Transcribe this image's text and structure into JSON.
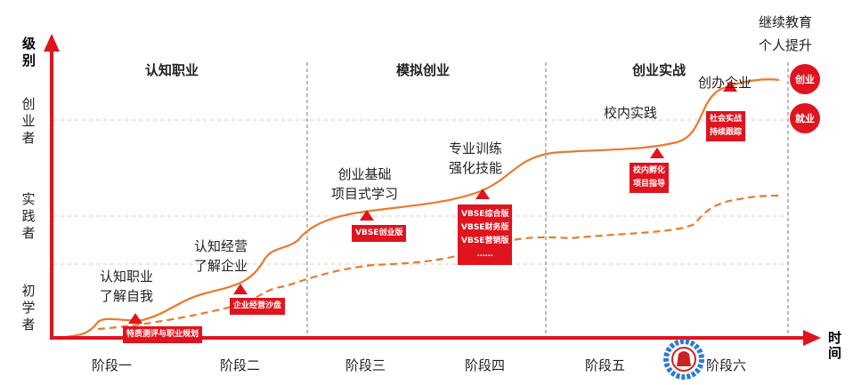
{
  "y_axis": {
    "title": [
      "级",
      "别"
    ],
    "levels": [
      [
        "创",
        "业",
        "者"
      ],
      [
        "实",
        "践",
        "者"
      ],
      [
        "初",
        "学",
        "者"
      ]
    ]
  },
  "x_axis": {
    "title": [
      "时",
      "间"
    ],
    "phases": [
      "阶段一",
      "阶段二",
      "阶段三",
      "阶段四",
      "阶段五",
      "阶段六"
    ]
  },
  "stages": [
    "认知职业",
    "模拟创业",
    "创业实战"
  ],
  "top_right": [
    "继续教育",
    "个人提升"
  ],
  "circles": [
    "创业",
    "就业"
  ],
  "notes": [
    [
      "认知职业",
      "了解自我"
    ],
    [
      "认知经营",
      "了解企业"
    ],
    [
      "创业基础",
      "项目式学习"
    ],
    [
      "专业训练",
      "强化技能"
    ],
    [
      "校内实践"
    ],
    [
      "创办企业"
    ]
  ],
  "boxes": [
    [
      "特质测评与职业规划"
    ],
    [
      "企业经营沙盘"
    ],
    [
      "VBSE创业版"
    ],
    [
      "VBSE综合版",
      "VBSE财务版",
      "VBSE营销版",
      "……"
    ],
    [
      "校内孵化",
      "项目指导"
    ],
    [
      "社会实战",
      "持续跟踪"
    ]
  ],
  "colors": {
    "red": "#e0141e",
    "orange": "#ea7a2c"
  }
}
